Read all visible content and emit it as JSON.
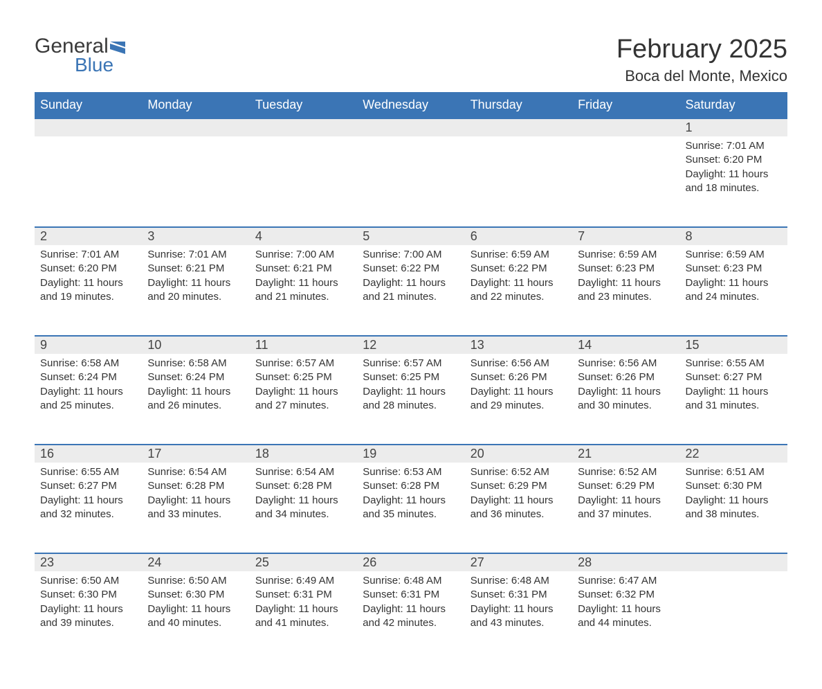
{
  "logo": {
    "text1": "General",
    "text2": "Blue",
    "icon_color": "#3b75b5",
    "text1_color": "#3a3a3a",
    "text2_color": "#3b75b5"
  },
  "title": "February 2025",
  "location": "Boca del Monte, Mexico",
  "colors": {
    "header_bg": "#3b75b5",
    "header_text": "#ffffff",
    "daynum_bg": "#ececec",
    "row_border": "#3b75b5",
    "body_text": "#333333"
  },
  "day_headers": [
    "Sunday",
    "Monday",
    "Tuesday",
    "Wednesday",
    "Thursday",
    "Friday",
    "Saturday"
  ],
  "weeks": [
    [
      null,
      null,
      null,
      null,
      null,
      null,
      {
        "num": "1",
        "sunrise": "7:01 AM",
        "sunset": "6:20 PM",
        "daylight": "11 hours and 18 minutes."
      }
    ],
    [
      {
        "num": "2",
        "sunrise": "7:01 AM",
        "sunset": "6:20 PM",
        "daylight": "11 hours and 19 minutes."
      },
      {
        "num": "3",
        "sunrise": "7:01 AM",
        "sunset": "6:21 PM",
        "daylight": "11 hours and 20 minutes."
      },
      {
        "num": "4",
        "sunrise": "7:00 AM",
        "sunset": "6:21 PM",
        "daylight": "11 hours and 21 minutes."
      },
      {
        "num": "5",
        "sunrise": "7:00 AM",
        "sunset": "6:22 PM",
        "daylight": "11 hours and 21 minutes."
      },
      {
        "num": "6",
        "sunrise": "6:59 AM",
        "sunset": "6:22 PM",
        "daylight": "11 hours and 22 minutes."
      },
      {
        "num": "7",
        "sunrise": "6:59 AM",
        "sunset": "6:23 PM",
        "daylight": "11 hours and 23 minutes."
      },
      {
        "num": "8",
        "sunrise": "6:59 AM",
        "sunset": "6:23 PM",
        "daylight": "11 hours and 24 minutes."
      }
    ],
    [
      {
        "num": "9",
        "sunrise": "6:58 AM",
        "sunset": "6:24 PM",
        "daylight": "11 hours and 25 minutes."
      },
      {
        "num": "10",
        "sunrise": "6:58 AM",
        "sunset": "6:24 PM",
        "daylight": "11 hours and 26 minutes."
      },
      {
        "num": "11",
        "sunrise": "6:57 AM",
        "sunset": "6:25 PM",
        "daylight": "11 hours and 27 minutes."
      },
      {
        "num": "12",
        "sunrise": "6:57 AM",
        "sunset": "6:25 PM",
        "daylight": "11 hours and 28 minutes."
      },
      {
        "num": "13",
        "sunrise": "6:56 AM",
        "sunset": "6:26 PM",
        "daylight": "11 hours and 29 minutes."
      },
      {
        "num": "14",
        "sunrise": "6:56 AM",
        "sunset": "6:26 PM",
        "daylight": "11 hours and 30 minutes."
      },
      {
        "num": "15",
        "sunrise": "6:55 AM",
        "sunset": "6:27 PM",
        "daylight": "11 hours and 31 minutes."
      }
    ],
    [
      {
        "num": "16",
        "sunrise": "6:55 AM",
        "sunset": "6:27 PM",
        "daylight": "11 hours and 32 minutes."
      },
      {
        "num": "17",
        "sunrise": "6:54 AM",
        "sunset": "6:28 PM",
        "daylight": "11 hours and 33 minutes."
      },
      {
        "num": "18",
        "sunrise": "6:54 AM",
        "sunset": "6:28 PM",
        "daylight": "11 hours and 34 minutes."
      },
      {
        "num": "19",
        "sunrise": "6:53 AM",
        "sunset": "6:28 PM",
        "daylight": "11 hours and 35 minutes."
      },
      {
        "num": "20",
        "sunrise": "6:52 AM",
        "sunset": "6:29 PM",
        "daylight": "11 hours and 36 minutes."
      },
      {
        "num": "21",
        "sunrise": "6:52 AM",
        "sunset": "6:29 PM",
        "daylight": "11 hours and 37 minutes."
      },
      {
        "num": "22",
        "sunrise": "6:51 AM",
        "sunset": "6:30 PM",
        "daylight": "11 hours and 38 minutes."
      }
    ],
    [
      {
        "num": "23",
        "sunrise": "6:50 AM",
        "sunset": "6:30 PM",
        "daylight": "11 hours and 39 minutes."
      },
      {
        "num": "24",
        "sunrise": "6:50 AM",
        "sunset": "6:30 PM",
        "daylight": "11 hours and 40 minutes."
      },
      {
        "num": "25",
        "sunrise": "6:49 AM",
        "sunset": "6:31 PM",
        "daylight": "11 hours and 41 minutes."
      },
      {
        "num": "26",
        "sunrise": "6:48 AM",
        "sunset": "6:31 PM",
        "daylight": "11 hours and 42 minutes."
      },
      {
        "num": "27",
        "sunrise": "6:48 AM",
        "sunset": "6:31 PM",
        "daylight": "11 hours and 43 minutes."
      },
      {
        "num": "28",
        "sunrise": "6:47 AM",
        "sunset": "6:32 PM",
        "daylight": "11 hours and 44 minutes."
      },
      null
    ]
  ],
  "labels": {
    "sunrise": "Sunrise:",
    "sunset": "Sunset:",
    "daylight": "Daylight:"
  }
}
